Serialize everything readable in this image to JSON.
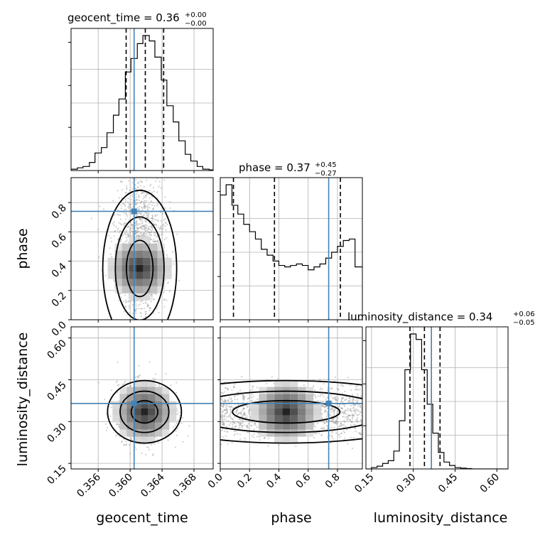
{
  "figure": {
    "params": [
      "geocent_time",
      "phase",
      "luminosity_distance"
    ],
    "axis_labels": [
      "geocent_time",
      "phase",
      "luminosity_distance"
    ],
    "truth_color": "#4682b4",
    "hist_color": "#000000",
    "quantile_color": "#000000"
  },
  "chart_data": {
    "type": "corner",
    "parameters": [
      {
        "name": "geocent_time",
        "title_base": "geocent_time = 0.36",
        "title_plus": "+0.00",
        "title_minus": "−0.00",
        "range": [
          0.3526,
          0.3704
        ],
        "ticks": [
          0.356,
          0.36,
          0.364,
          0.368
        ],
        "tick_labels": [
          "0.356",
          "0.360",
          "0.364",
          "0.368"
        ],
        "truth": 0.3605,
        "quantiles": [
          0.3595,
          0.3619,
          0.3642
        ],
        "hist_bins": [
          0.3526,
          0.3534,
          0.3541,
          0.3549,
          0.3556,
          0.3564,
          0.3571,
          0.3579,
          0.3586,
          0.3594,
          0.3601,
          0.3609,
          0.3616,
          0.3624,
          0.3631,
          0.3639,
          0.3646,
          0.3654,
          0.3661,
          0.3669,
          0.3676,
          0.3684,
          0.3691,
          0.3699,
          0.3704
        ],
        "hist_values": [
          0.01,
          0.02,
          0.03,
          0.06,
          0.13,
          0.17,
          0.28,
          0.41,
          0.53,
          0.73,
          0.83,
          0.94,
          1.0,
          0.96,
          0.84,
          0.67,
          0.48,
          0.36,
          0.22,
          0.12,
          0.07,
          0.03,
          0.01,
          0.005
        ]
      },
      {
        "name": "phase",
        "title_base": "phase = 0.37",
        "title_plus": "+0.45",
        "title_minus": "−0.27",
        "range": [
          0.0,
          0.97
        ],
        "ticks": [
          0.0,
          0.2,
          0.4,
          0.6,
          0.8
        ],
        "tick_labels": [
          "0.0",
          "0.2",
          "0.4",
          "0.6",
          "0.8"
        ],
        "truth": 0.74,
        "quantiles": [
          0.09,
          0.37,
          0.82
        ],
        "hist_bins": [
          0.0,
          0.04,
          0.08,
          0.12,
          0.16,
          0.2,
          0.24,
          0.28,
          0.32,
          0.36,
          0.4,
          0.44,
          0.48,
          0.52,
          0.56,
          0.6,
          0.64,
          0.68,
          0.72,
          0.76,
          0.8,
          0.84,
          0.88,
          0.92,
          0.97
        ],
        "hist_values": [
          0.85,
          0.92,
          0.78,
          0.72,
          0.65,
          0.6,
          0.55,
          0.48,
          0.44,
          0.4,
          0.37,
          0.36,
          0.37,
          0.38,
          0.37,
          0.34,
          0.36,
          0.38,
          0.42,
          0.46,
          0.5,
          0.54,
          0.55,
          0.36
        ]
      },
      {
        "name": "luminosity_distance",
        "title_base": "luminosity_distance = 0.34",
        "title_plus": "+0.06",
        "title_minus": "−0.05",
        "range": [
          0.13,
          0.64
        ],
        "ticks": [
          0.15,
          0.3,
          0.45,
          0.6
        ],
        "tick_labels": [
          "0.15",
          "0.30",
          "0.45",
          "0.60"
        ],
        "truth": 0.365,
        "quantiles": [
          0.288,
          0.34,
          0.396
        ],
        "hist_bins": [
          0.13,
          0.15,
          0.17,
          0.19,
          0.21,
          0.23,
          0.25,
          0.27,
          0.29,
          0.31,
          0.33,
          0.35,
          0.37,
          0.39,
          0.41,
          0.43,
          0.45,
          0.47,
          0.49,
          0.51,
          0.53,
          0.55,
          0.57,
          0.6,
          0.64
        ],
        "hist_values": [
          0.0,
          0.01,
          0.02,
          0.04,
          0.06,
          0.13,
          0.35,
          0.72,
          0.98,
          0.94,
          0.72,
          0.47,
          0.26,
          0.12,
          0.05,
          0.025,
          0.01,
          0.006,
          0.003,
          0.0,
          0.0,
          0.0,
          0.0,
          0.0
        ]
      }
    ],
    "pairs": [
      {
        "x": 0,
        "y": 1
      },
      {
        "x": 0,
        "y": 2
      },
      {
        "x": 1,
        "y": 2
      }
    ]
  }
}
